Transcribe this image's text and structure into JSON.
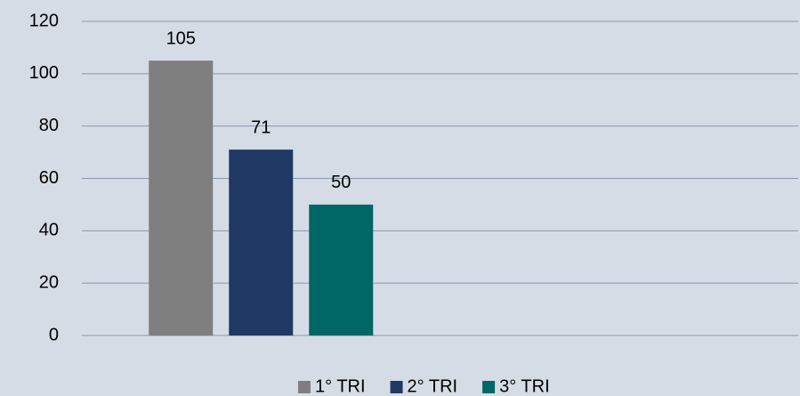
{
  "chart_data": {
    "type": "bar",
    "categories": [
      null,
      null
    ],
    "series": [
      {
        "name": "1° TRI",
        "color": "#7f7f7f",
        "values": [
          105,
          null
        ]
      },
      {
        "name": "2° TRI",
        "color": "#203864",
        "values": [
          71,
          null
        ]
      },
      {
        "name": "3° TRI",
        "color": "#006666",
        "values": [
          50,
          null
        ]
      }
    ],
    "ylim": [
      0,
      120
    ],
    "yticks": [
      0,
      20,
      40,
      60,
      80,
      100,
      120
    ],
    "grid": true,
    "legend": "bottom"
  }
}
